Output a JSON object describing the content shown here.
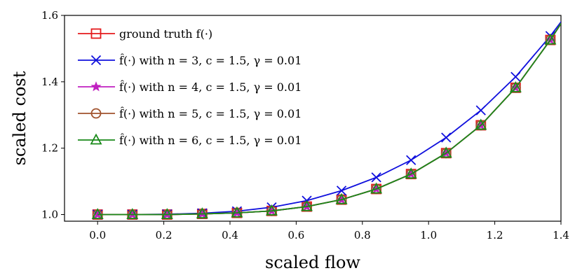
{
  "chart_data": {
    "type": "line",
    "title": "",
    "xlabel": "scaled flow",
    "ylabel": "scaled cost",
    "xlim": [
      -0.1,
      1.4
    ],
    "ylim": [
      0.98,
      1.6
    ],
    "xticks": [
      0.0,
      0.2,
      0.4,
      0.6,
      0.8,
      1.0,
      1.2,
      1.4
    ],
    "xtick_labels": [
      "0.0",
      "0.2",
      "0.4",
      "0.6",
      "0.8",
      "1.0",
      "1.2",
      "1.4"
    ],
    "yticks": [
      1.0,
      1.2,
      1.4,
      1.6
    ],
    "ytick_labels": [
      "1.0",
      "1.2",
      "1.4",
      "1.6"
    ],
    "legend_position": "top-left",
    "x": [
      0.0,
      0.105,
      0.21,
      0.316,
      0.421,
      0.526,
      0.632,
      0.737,
      0.842,
      0.947,
      1.053,
      1.158,
      1.263,
      1.368
    ],
    "series": [
      {
        "name": "ground truth f(·)",
        "legend_label": "ground truth f(·)",
        "color": "#e41a1c",
        "marker": "square",
        "values": [
          1.0,
          1.0,
          1.0,
          1.002,
          1.005,
          1.011,
          1.024,
          1.045,
          1.077,
          1.122,
          1.185,
          1.269,
          1.382,
          1.526
        ]
      },
      {
        "name": "f̂(·) with n = 3, c = 1.5, γ = 0.01",
        "legend_label": "f̂(·) with n = 3, c = 1.5, γ = 0.01",
        "color": "#1010dd",
        "marker": "x",
        "values": [
          1.0,
          1.0,
          1.001,
          1.004,
          1.01,
          1.022,
          1.042,
          1.072,
          1.112,
          1.164,
          1.232,
          1.314,
          1.415,
          1.538
        ]
      },
      {
        "name": "f̂(·) with n = 4, c = 1.5, γ = 0.01",
        "legend_label": "f̂(·) with n = 4, c = 1.5, γ = 0.01",
        "color": "#c020c0",
        "marker": "star",
        "values": [
          1.0,
          1.0,
          1.0,
          1.002,
          1.005,
          1.011,
          1.024,
          1.045,
          1.077,
          1.122,
          1.185,
          1.269,
          1.382,
          1.526
        ]
      },
      {
        "name": "f̂(·) with n = 5, c = 1.5, γ = 0.01",
        "legend_label": "f̂(·) with n = 5, c = 1.5, γ = 0.01",
        "color": "#a0522d",
        "marker": "circle",
        "values": [
          1.0,
          1.0,
          1.0,
          1.002,
          1.005,
          1.011,
          1.024,
          1.045,
          1.077,
          1.122,
          1.185,
          1.269,
          1.382,
          1.526
        ]
      },
      {
        "name": "f̂(·) with n = 6, c = 1.5, γ = 0.01",
        "legend_label": "f̂(·) with n = 6, c = 1.5, γ = 0.01",
        "color": "#1a8a1a",
        "marker": "triangle",
        "values": [
          1.0,
          1.0,
          1.0,
          1.002,
          1.005,
          1.011,
          1.024,
          1.045,
          1.077,
          1.122,
          1.185,
          1.269,
          1.382,
          1.526
        ]
      }
    ]
  }
}
